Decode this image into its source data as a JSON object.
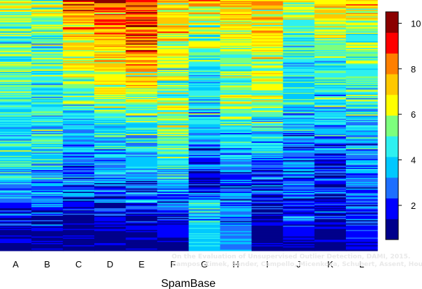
{
  "chart_data": {
    "type": "heatmap",
    "xlabel": "SpamBase",
    "columns": [
      "A",
      "B",
      "C",
      "D",
      "E",
      "F",
      "G",
      "H",
      "I",
      "J",
      "K",
      "L"
    ],
    "n_rows": 230,
    "colorbar": {
      "min": 0.5,
      "max": 10.5,
      "ticks": [
        2,
        4,
        6,
        8,
        10
      ],
      "colors": [
        "#00008b",
        "#0000ff",
        "#1e6fff",
        "#00c8ff",
        "#2ef0f0",
        "#7dff7d",
        "#ffff00",
        "#ffc800",
        "#ff7f00",
        "#ff0000",
        "#8b0000"
      ]
    },
    "rank_profiles": [
      [
        [
          0,
          6.3
        ],
        [
          0.15,
          5.5
        ],
        [
          0.3,
          5.2
        ],
        [
          0.45,
          5.0
        ],
        [
          0.6,
          4.6
        ],
        [
          0.75,
          3.8
        ],
        [
          0.85,
          2.2
        ],
        [
          1,
          1.1
        ]
      ],
      [
        [
          0,
          6.3
        ],
        [
          0.15,
          5.5
        ],
        [
          0.3,
          5.2
        ],
        [
          0.45,
          5.0
        ],
        [
          0.6,
          4.6
        ],
        [
          0.75,
          3.8
        ],
        [
          0.85,
          2.2
        ],
        [
          1,
          1.1
        ]
      ],
      [
        [
          0,
          9.2
        ],
        [
          0.15,
          7.7
        ],
        [
          0.3,
          6.4
        ],
        [
          0.45,
          4.6
        ],
        [
          0.6,
          3.6
        ],
        [
          0.75,
          2.7
        ],
        [
          0.85,
          1.6
        ],
        [
          1,
          1.0
        ]
      ],
      [
        [
          0,
          9.2
        ],
        [
          0.15,
          8.3
        ],
        [
          0.3,
          7.3
        ],
        [
          0.45,
          5.3
        ],
        [
          0.6,
          4.1
        ],
        [
          0.75,
          2.8
        ],
        [
          0.85,
          1.7
        ],
        [
          1,
          1.0
        ]
      ],
      [
        [
          0,
          10.0
        ],
        [
          0.15,
          9.0
        ],
        [
          0.3,
          7.8
        ],
        [
          0.45,
          5.2
        ],
        [
          0.6,
          4.3
        ],
        [
          0.75,
          2.8
        ],
        [
          0.85,
          1.7
        ],
        [
          1,
          1.0
        ]
      ],
      [
        [
          0,
          7.6
        ],
        [
          0.15,
          7.5
        ],
        [
          0.3,
          5.9
        ],
        [
          0.45,
          6.3
        ],
        [
          0.6,
          5.3
        ],
        [
          0.75,
          3.9
        ],
        [
          0.85,
          2.2
        ],
        [
          1,
          1.2
        ]
      ],
      [
        [
          0,
          7.4
        ],
        [
          0.15,
          5.8
        ],
        [
          0.3,
          4.3
        ],
        [
          0.45,
          4.7
        ],
        [
          0.6,
          3.2
        ],
        [
          0.75,
          2.2
        ],
        [
          0.85,
          4.3
        ],
        [
          1,
          4.2
        ]
      ],
      [
        [
          0,
          8.3
        ],
        [
          0.15,
          6.8
        ],
        [
          0.3,
          5.6
        ],
        [
          0.45,
          6.0
        ],
        [
          0.6,
          3.7
        ],
        [
          0.75,
          2.6
        ],
        [
          0.85,
          3.5
        ],
        [
          1,
          3.4
        ]
      ],
      [
        [
          0,
          8.0
        ],
        [
          0.15,
          7.2
        ],
        [
          0.3,
          6.6
        ],
        [
          0.45,
          5.3
        ],
        [
          0.6,
          3.8
        ],
        [
          0.75,
          2.3
        ],
        [
          0.85,
          1.4
        ],
        [
          1,
          1.0
        ]
      ],
      [
        [
          0,
          6.8
        ],
        [
          0.15,
          5.1
        ],
        [
          0.3,
          5.0
        ],
        [
          0.45,
          4.1
        ],
        [
          0.6,
          3.2
        ],
        [
          0.75,
          2.7
        ],
        [
          0.85,
          2.6
        ],
        [
          1,
          1.4
        ]
      ],
      [
        [
          0,
          7.2
        ],
        [
          0.15,
          6.2
        ],
        [
          0.3,
          5.1
        ],
        [
          0.45,
          4.1
        ],
        [
          0.6,
          3.1
        ],
        [
          0.75,
          2.3
        ],
        [
          0.85,
          1.5
        ],
        [
          1,
          1.1
        ]
      ],
      [
        [
          0,
          8.2
        ],
        [
          0.15,
          5.7
        ],
        [
          0.3,
          5.4
        ],
        [
          0.45,
          4.7
        ],
        [
          0.6,
          3.7
        ],
        [
          0.75,
          2.6
        ],
        [
          0.85,
          2.4
        ],
        [
          1,
          1.6
        ]
      ]
    ]
  },
  "watermark": {
    "line1": "On the Evaluation of Unsupervised Outlier Detection, DAMI, 2015.",
    "line2": "Campos, Zimek, Sander, Campello, Micenkova, Schubert, Assent, Houle"
  }
}
